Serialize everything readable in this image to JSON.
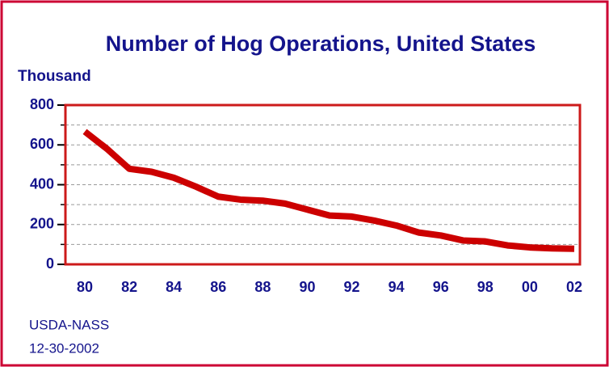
{
  "chart_data": {
    "type": "line",
    "title": "Number of Hog Operations, United States",
    "y_label": "Thousand",
    "source": "USDA-NASS",
    "date": "12-30-2002",
    "categories": [
      "80",
      null,
      "82",
      null,
      "84",
      null,
      "86",
      null,
      "88",
      null,
      "90",
      null,
      "92",
      null,
      "94",
      null,
      "96",
      null,
      "98",
      null,
      "00",
      null,
      "02"
    ],
    "series": [
      {
        "name": "Hog operations",
        "color": "#cc0000",
        "values": [
          667,
          580,
          480,
          465,
          435,
          390,
          340,
          325,
          320,
          305,
          275,
          245,
          240,
          220,
          195,
          160,
          145,
          120,
          115,
          95,
          85,
          80,
          78
        ]
      }
    ],
    "ylim": [
      0,
      800
    ],
    "yticks": [
      0,
      200,
      400,
      600,
      800
    ],
    "yminor_ticks": [
      100,
      300,
      500,
      700
    ],
    "grid": true
  }
}
